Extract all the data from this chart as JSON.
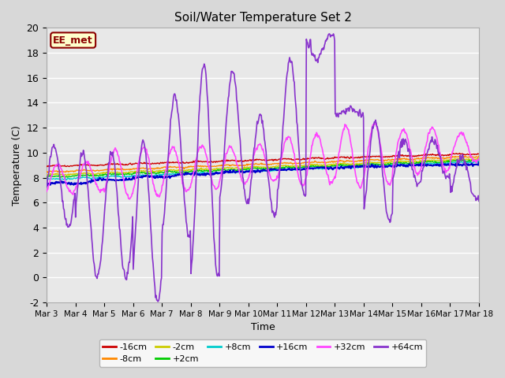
{
  "title": "Soil/Water Temperature Set 2",
  "xlabel": "Time",
  "ylabel": "Temperature (C)",
  "ylim": [
    -2,
    20
  ],
  "xlim": [
    0,
    15
  ],
  "fig_bg": "#d8d8d8",
  "plot_bg": "#e8e8e8",
  "annotation_text": "EE_met",
  "annotation_bg": "#ffffcc",
  "annotation_border": "#8b0000",
  "annotation_text_color": "#8b0000",
  "xtick_labels": [
    "Mar 3",
    "Mar 4",
    "Mar 5",
    "Mar 6",
    "Mar 7",
    "Mar 8",
    "Mar 9",
    "Mar 10",
    "Mar 11",
    "Mar 12",
    "Mar 13",
    "Mar 14",
    "Mar 15",
    "Mar 16",
    "Mar 17",
    "Mar 18"
  ],
  "legend_colors": [
    "#cc0000",
    "#ff8800",
    "#cccc00",
    "#00cc00",
    "#00cccc",
    "#0000cc",
    "#ff44ff",
    "#8833cc"
  ],
  "legend_labels": [
    "-16cm",
    "-8cm",
    "-2cm",
    "+2cm",
    "+8cm",
    "+16cm",
    "+32cm",
    "+64cm"
  ]
}
